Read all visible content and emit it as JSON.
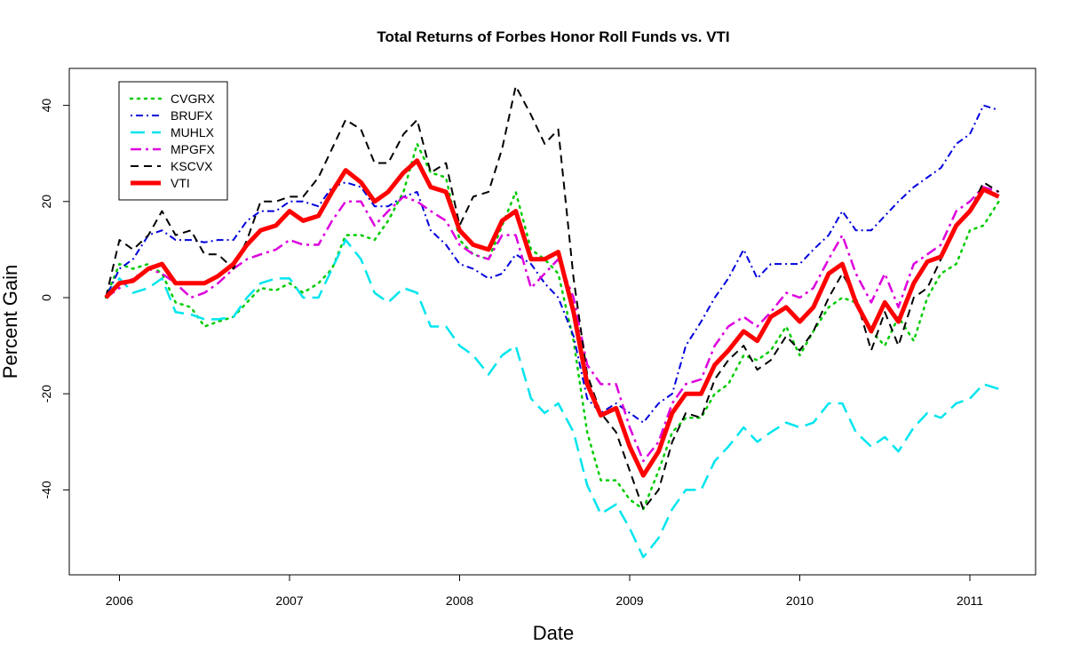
{
  "chart_data": {
    "type": "line",
    "title": "Total Returns of Forbes Honor Roll Funds vs. VTI",
    "xlabel": "Date",
    "ylabel": "Percent Gain",
    "xlim": [
      2005.92,
      2011.17
    ],
    "ylim": [
      -58,
      47
    ],
    "x_ticks": [
      2006,
      2007,
      2008,
      2009,
      2010,
      2011
    ],
    "x_tick_labels": [
      "2006",
      "2007",
      "2008",
      "2009",
      "2010",
      "2011"
    ],
    "y_ticks": [
      -40,
      -20,
      0,
      20,
      40
    ],
    "y_tick_labels": [
      "-40",
      "-20",
      "0",
      "20",
      "40"
    ],
    "grid": false,
    "legend_position": "top-left",
    "x": [
      2005.92,
      2006.0,
      2006.08,
      2006.17,
      2006.25,
      2006.33,
      2006.42,
      2006.5,
      2006.58,
      2006.67,
      2006.75,
      2006.83,
      2006.92,
      2007.0,
      2007.08,
      2007.17,
      2007.25,
      2007.33,
      2007.42,
      2007.5,
      2007.58,
      2007.67,
      2007.75,
      2007.83,
      2007.92,
      2008.0,
      2008.08,
      2008.17,
      2008.25,
      2008.33,
      2008.42,
      2008.5,
      2008.58,
      2008.67,
      2008.75,
      2008.83,
      2008.92,
      2009.0,
      2009.08,
      2009.17,
      2009.25,
      2009.33,
      2009.42,
      2009.5,
      2009.58,
      2009.67,
      2009.75,
      2009.83,
      2009.92,
      2010.0,
      2010.08,
      2010.17,
      2010.25,
      2010.33,
      2010.42,
      2010.5,
      2010.58,
      2010.67,
      2010.75,
      2010.83,
      2010.92,
      2011.0,
      2011.08,
      2011.17
    ],
    "series": [
      {
        "name": "CVGRX",
        "color": "#00cc00",
        "dash": "dotted",
        "width": 2.5,
        "values": [
          0,
          7,
          6,
          7,
          5,
          -1,
          -2,
          -6,
          -5,
          -4,
          -1,
          2,
          1.5,
          3,
          1,
          3,
          6,
          13,
          13,
          12,
          16,
          22,
          32,
          26,
          25,
          12,
          9,
          8,
          15,
          22,
          10,
          8,
          5,
          -9,
          -28,
          -38,
          -38,
          -42,
          -44,
          -36,
          -28,
          -25,
          -25,
          -20,
          -18,
          -12,
          -13,
          -11,
          -6,
          -12,
          -7,
          -2,
          0,
          -1,
          -7,
          -10,
          -4,
          -9,
          0,
          5,
          7,
          14,
          15,
          20
        ]
      },
      {
        "name": "BRUFX",
        "color": "#0000dd",
        "dash": "dotdash",
        "width": 2,
        "values": [
          0,
          6,
          8,
          13,
          14,
          12,
          12,
          11.5,
          12,
          12,
          16,
          18,
          18,
          20,
          20,
          19,
          23,
          24,
          23,
          19,
          19,
          21,
          22,
          14,
          11,
          7,
          6,
          4,
          5,
          9,
          7,
          3,
          0,
          -8,
          -21,
          -24,
          -22,
          -24,
          -26,
          -22,
          -20,
          -10,
          -5,
          0,
          4,
          10,
          4,
          7,
          7,
          7,
          10,
          13,
          18,
          14,
          14,
          17,
          20,
          23,
          25,
          27,
          32,
          34,
          40,
          39
        ]
      },
      {
        "name": "MUHLX",
        "color": "#00e5ee",
        "dash": "longdash",
        "width": 2.5,
        "values": [
          0,
          4,
          1,
          2,
          4,
          -3,
          -3.5,
          -4.5,
          -4.5,
          -4,
          0,
          3,
          4,
          4,
          0,
          0,
          6,
          12,
          8,
          1,
          -1,
          2,
          1,
          -6,
          -6,
          -10,
          -12,
          -16,
          -12,
          -10,
          -21,
          -24,
          -22,
          -28,
          -39,
          -45,
          -43,
          -48,
          -54,
          -50,
          -44,
          -40,
          -40,
          -34,
          -31,
          -27,
          -30,
          -28,
          -26,
          -27,
          -26,
          -22,
          -22,
          -28,
          -31,
          -29,
          -32,
          -27,
          -24,
          -25,
          -22,
          -21,
          -18,
          -19
        ]
      },
      {
        "name": "MPGFX",
        "color": "#dd00dd",
        "dash": "dashdot",
        "width": 2.5,
        "values": [
          0,
          2,
          4,
          6,
          5,
          3,
          0,
          1,
          3,
          6,
          8,
          9,
          10,
          12,
          11,
          11,
          16,
          20,
          20,
          15,
          18,
          21,
          20,
          18,
          16,
          11,
          9,
          8,
          13,
          13,
          2,
          5,
          8,
          0,
          -14,
          -18,
          -18,
          -27,
          -34,
          -30,
          -22,
          -18,
          -17,
          -10,
          -6,
          -4,
          -6,
          -3,
          1,
          0,
          2,
          8,
          13,
          5,
          -1,
          5,
          -2,
          7,
          9,
          11,
          18,
          20,
          23,
          22
        ]
      },
      {
        "name": "KSCVX",
        "color": "#000000",
        "dash": "shortdash",
        "width": 2,
        "values": [
          0,
          12,
          10,
          13,
          18,
          13,
          14,
          9,
          9,
          6,
          12,
          20,
          20,
          21,
          21,
          25,
          31,
          37,
          35,
          28,
          28,
          34,
          37,
          26,
          28,
          15,
          21,
          22,
          31,
          44,
          38,
          32,
          35,
          4,
          -16,
          -24,
          -28,
          -36,
          -44,
          -40,
          -30,
          -24,
          -25,
          -17,
          -13,
          -10,
          -15,
          -13,
          -8,
          -11,
          -7,
          0,
          5,
          0,
          -11,
          -3,
          -10,
          0,
          2,
          8,
          15,
          18,
          24,
          22
        ]
      },
      {
        "name": "VTI",
        "color": "#ff0000",
        "dash": "solid",
        "width": 5,
        "values": [
          0,
          3,
          3.5,
          6,
          7,
          3,
          3,
          3,
          4.5,
          7,
          11,
          14,
          15,
          18,
          16,
          17,
          22,
          26.5,
          24,
          20,
          22,
          26,
          28.5,
          23,
          22,
          14,
          11,
          10,
          16,
          18,
          8,
          8,
          9.5,
          -3,
          -18,
          -24.5,
          -23,
          -31,
          -37,
          -32,
          -24,
          -20,
          -20,
          -14,
          -11,
          -7,
          -9,
          -4,
          -2,
          -5,
          -2,
          5,
          7,
          -1,
          -7,
          -1,
          -5,
          3,
          7.5,
          8.5,
          15,
          18,
          22.5,
          21
        ]
      }
    ]
  }
}
